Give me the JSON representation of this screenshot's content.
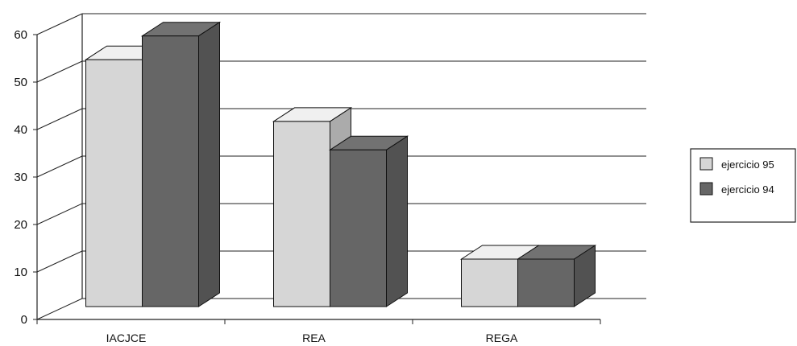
{
  "chart_data": {
    "type": "bar",
    "title": "",
    "xlabel": "",
    "ylabel": "",
    "categories": [
      "IACJCE",
      "REA",
      "REGA"
    ],
    "series": [
      {
        "name": "ejercicio 95",
        "values": [
          52,
          39,
          10
        ],
        "color": "#d6d6d6"
      },
      {
        "name": "ejercicio 94",
        "values": [
          57,
          33,
          10
        ],
        "color": "#666666"
      }
    ],
    "ylim": [
      0,
      60
    ],
    "yticks": [
      0,
      10,
      20,
      30,
      40,
      50,
      60
    ],
    "grid": true,
    "three_d": true,
    "legend_position": "right"
  }
}
